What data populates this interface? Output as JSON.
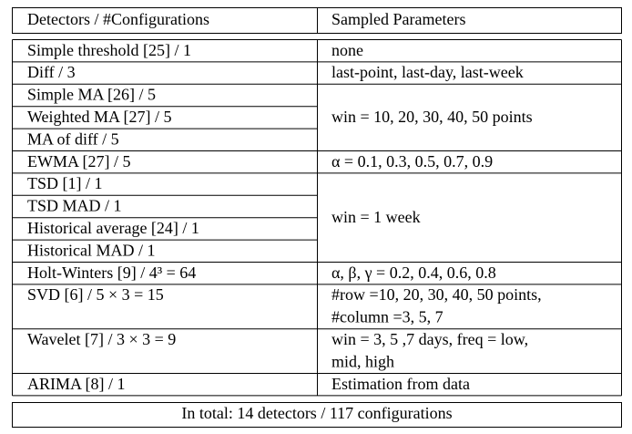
{
  "table": {
    "header": [
      "Detectors / #Configurations",
      "Sampled Parameters"
    ],
    "rows": [
      {
        "detectors": [
          "Simple threshold [25] / 1"
        ],
        "parameters": [
          "none"
        ]
      },
      {
        "detectors": [
          "Diff / 3"
        ],
        "parameters": [
          "last-point, last-day, last-week"
        ]
      },
      {
        "detectors": [
          "Simple MA [26] / 5",
          "Weighted MA [27] / 5",
          "MA of diff / 5"
        ],
        "parameters": [
          "win = 10, 20, 30, 40, 50 points"
        ]
      },
      {
        "detectors": [
          "EWMA [27] / 5"
        ],
        "parameters": [
          "α = 0.1, 0.3, 0.5, 0.7, 0.9"
        ]
      },
      {
        "detectors": [
          "TSD [1] / 1",
          "TSD MAD / 1",
          "Historical average [24] / 1",
          "Historical MAD / 1"
        ],
        "parameters": [
          "win = 1 week"
        ]
      },
      {
        "detectors": [
          "Holt-Winters [9] / 4³ = 64"
        ],
        "parameters": [
          "α, β, γ = 0.2, 0.4, 0.6, 0.8"
        ]
      },
      {
        "detectors": [
          "SVD [6] / 5 × 3 = 15"
        ],
        "parameters": [
          "#row =10, 20, 30, 40, 50 points,",
          "#column =3, 5, 7"
        ]
      },
      {
        "detectors": [
          "Wavelet [7] / 3 × 3 = 9"
        ],
        "parameters": [
          "win = 3, 5 ,7 days,   freq = low,",
          "mid, high"
        ]
      },
      {
        "detectors": [
          "ARIMA [8] / 1"
        ],
        "parameters": [
          "Estimation from data"
        ]
      }
    ],
    "footer": "In total: 14 detectors / 117 configurations"
  }
}
